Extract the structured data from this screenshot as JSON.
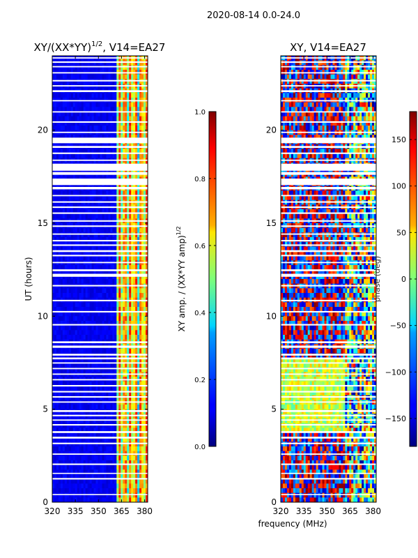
{
  "suptitle": "2020-08-14 0.0-24.0",
  "shared_xlabel": "frequency (MHz)",
  "chart_data": [
    {
      "type": "heatmap",
      "title_main": "XY/(XX*YY)",
      "title_exp": "1/2",
      "title_suffix": ", V14=EA27",
      "ylabel": "UT (hours)",
      "xlim": [
        320,
        382
      ],
      "ylim": [
        0,
        24
      ],
      "xticks": [
        320,
        335,
        350,
        365,
        380
      ],
      "yticks": [
        0,
        5,
        10,
        15,
        20
      ],
      "colorbar": {
        "label_main": "XY amp. / (XX*YY amp)",
        "label_exp": "1/2",
        "range": [
          0.0,
          1.0
        ],
        "ticks": [
          {
            "value": 0.0,
            "label": "0.0"
          },
          {
            "value": 0.2,
            "label": "0.2"
          },
          {
            "value": 0.4,
            "label": "0.4"
          },
          {
            "value": 0.6,
            "label": "0.6"
          },
          {
            "value": 0.8,
            "label": "0.8"
          },
          {
            "value": 1.0,
            "label": "1.0"
          }
        ],
        "colormap": "jet"
      }
    },
    {
      "type": "heatmap",
      "title_main": "XY, V14=EA27",
      "ylabel": "",
      "xlim": [
        320,
        382
      ],
      "ylim": [
        0,
        24
      ],
      "xticks": [
        320,
        335,
        350,
        365,
        380
      ],
      "yticks": [
        0,
        5,
        10,
        15,
        20
      ],
      "colorbar": {
        "label_main": "phase (deg)",
        "range": [
          -180,
          180
        ],
        "ticks": [
          {
            "value": -150,
            "label": "−150"
          },
          {
            "value": -100,
            "label": "−100"
          },
          {
            "value": -50,
            "label": "−50"
          },
          {
            "value": 0,
            "label": "0"
          },
          {
            "value": 50,
            "label": "50"
          },
          {
            "value": 100,
            "label": "100"
          },
          {
            "value": 150,
            "label": "150"
          }
        ],
        "colormap": "jet"
      }
    }
  ],
  "flagged_ut_bands": [
    [
      0.38,
      0.44
    ],
    [
      1.22,
      1.3
    ],
    [
      1.52,
      1.58
    ],
    [
      2.0,
      2.08
    ],
    [
      2.55,
      2.62
    ],
    [
      3.12,
      3.2
    ],
    [
      3.42,
      3.52
    ],
    [
      3.72,
      3.82
    ],
    [
      4.12,
      4.2
    ],
    [
      4.38,
      4.45
    ],
    [
      4.62,
      4.7
    ],
    [
      4.85,
      4.95
    ],
    [
      5.35,
      5.42
    ],
    [
      5.62,
      5.7
    ],
    [
      5.9,
      5.98
    ],
    [
      6.22,
      6.3
    ],
    [
      6.55,
      6.62
    ],
    [
      6.85,
      6.92
    ],
    [
      7.15,
      7.22
    ],
    [
      7.45,
      7.52
    ],
    [
      7.68,
      7.78
    ],
    [
      7.88,
      7.98
    ],
    [
      8.3,
      8.42
    ],
    [
      8.55,
      8.65
    ],
    [
      9.5,
      9.58
    ],
    [
      10.2,
      10.28
    ],
    [
      10.8,
      10.88
    ],
    [
      11.6,
      11.68
    ],
    [
      12.12,
      12.28
    ],
    [
      12.42,
      12.52
    ],
    [
      12.85,
      12.92
    ],
    [
      13.22,
      13.3
    ],
    [
      13.45,
      13.55
    ],
    [
      13.78,
      13.86
    ],
    [
      14.02,
      14.1
    ],
    [
      14.38,
      14.45
    ],
    [
      14.8,
      14.88
    ],
    [
      15.08,
      15.16
    ],
    [
      15.5,
      15.58
    ],
    [
      15.82,
      15.9
    ],
    [
      16.1,
      16.18
    ],
    [
      16.45,
      16.52
    ],
    [
      16.82,
      16.95
    ],
    [
      17.05,
      17.4
    ],
    [
      17.6,
      17.75
    ],
    [
      17.82,
      18.2
    ],
    [
      18.35,
      18.42
    ],
    [
      18.72,
      18.8
    ],
    [
      19.05,
      19.15
    ],
    [
      19.3,
      19.6
    ],
    [
      19.85,
      19.92
    ],
    [
      20.4,
      20.48
    ],
    [
      20.95,
      21.02
    ],
    [
      21.55,
      21.62
    ],
    [
      22.05,
      22.15
    ],
    [
      22.35,
      22.42
    ],
    [
      22.62,
      22.7
    ],
    [
      23.05,
      23.12
    ],
    [
      23.38,
      23.45
    ],
    [
      23.62,
      23.7
    ],
    [
      23.85,
      23.92
    ]
  ]
}
